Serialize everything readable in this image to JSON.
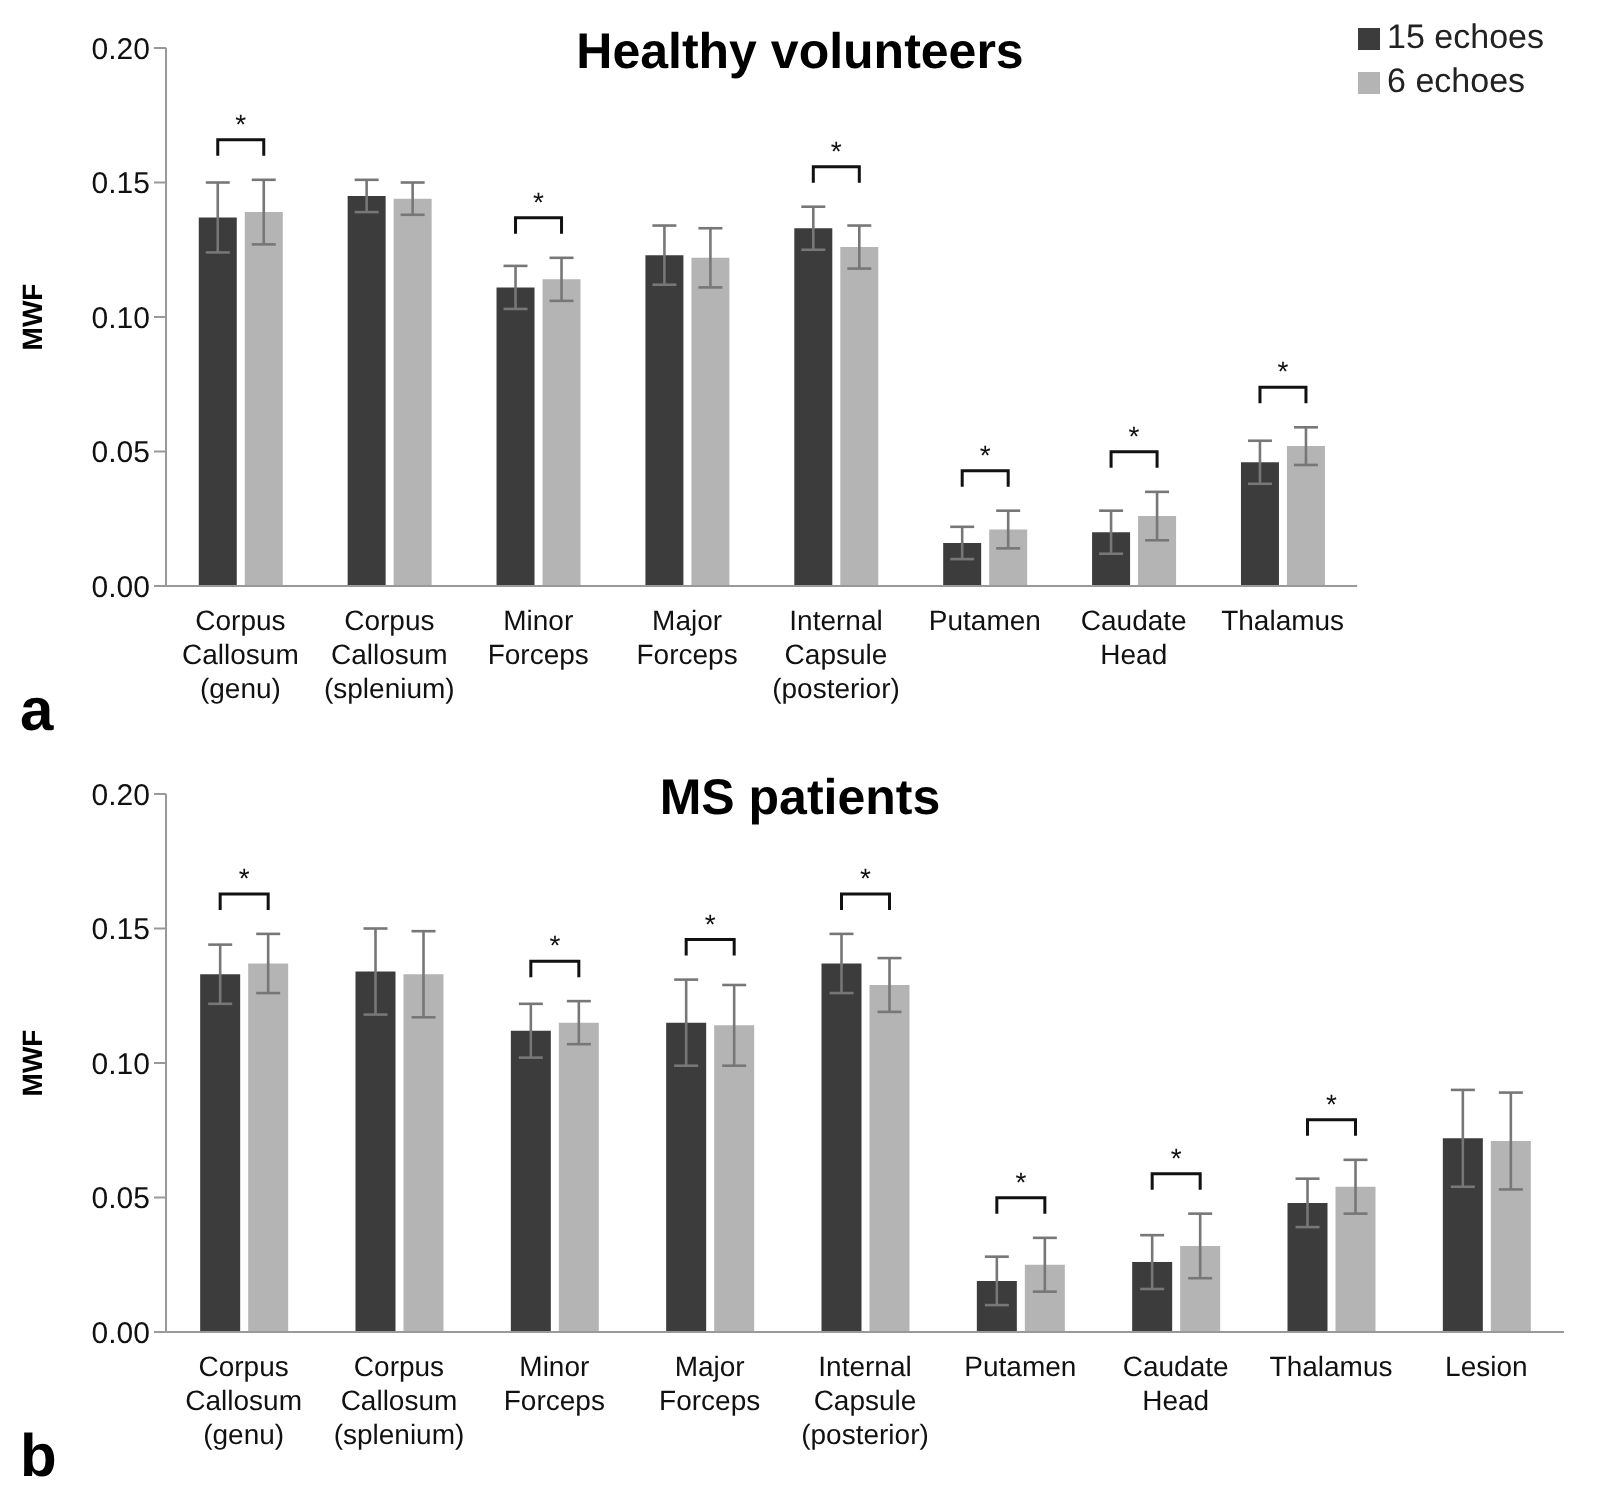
{
  "chart_data": [
    {
      "type": "bar",
      "title": "Healthy volunteers",
      "ylabel": "MWF",
      "categories": [
        "Corpus\nCallosum\n(genu)",
        "Corpus\nCallosum\n(splenium)",
        "Minor\nForceps",
        "Major\nForceps",
        "Internal\nCapsule\n(posterior)",
        "Putamen",
        "Caudate\nHead",
        "Thalamus"
      ],
      "series": [
        {
          "name": "15 echoes",
          "color": "#3c3c3c",
          "values": [
            0.137,
            0.145,
            0.111,
            0.123,
            0.133,
            0.016,
            0.02,
            0.046
          ],
          "errors": [
            0.013,
            0.006,
            0.008,
            0.011,
            0.008,
            0.006,
            0.008,
            0.008
          ]
        },
        {
          "name": "6 echoes",
          "color": "#b4b4b4",
          "values": [
            0.139,
            0.144,
            0.114,
            0.122,
            0.126,
            0.021,
            0.026,
            0.052
          ],
          "errors": [
            0.012,
            0.006,
            0.008,
            0.011,
            0.008,
            0.007,
            0.009,
            0.007
          ]
        }
      ],
      "ylim": [
        0,
        0.2
      ],
      "yticks": [
        {
          "value": 0,
          "label": "0.00"
        },
        {
          "value": 0.05,
          "label": "0.05"
        },
        {
          "value": 0.1,
          "label": "0.10"
        },
        {
          "value": 0.15,
          "label": "0.15"
        },
        {
          "value": 0.2,
          "label": "0.20"
        }
      ],
      "legend": "top right",
      "annotations": [
        "*",
        "*",
        "*",
        "*",
        "*",
        "*",
        "a"
      ]
    },
    {
      "type": "bar",
      "title": "MS patients",
      "ylabel": "MWF",
      "categories": [
        "Corpus\nCallosum\n(genu)",
        "Corpus\nCallosum\n(splenium)",
        "Minor\nForceps",
        "Major\nForceps",
        "Internal\nCapsule\n(posterior)",
        "Putamen",
        "Caudate\nHead",
        "Thalamus",
        "Lesion"
      ],
      "series": [
        {
          "color": "#3c3c3c",
          "values": [
            0.133,
            0.134,
            0.112,
            0.115,
            0.137,
            0.019,
            0.026,
            0.048,
            0.072
          ],
          "errors": [
            0.011,
            0.016,
            0.01,
            0.016,
            0.011,
            0.009,
            0.01,
            0.009,
            0.018
          ]
        },
        {
          "color": "#b4b4b4",
          "values": [
            0.137,
            0.133,
            0.115,
            0.114,
            0.129,
            0.025,
            0.032,
            0.054,
            0.071
          ],
          "errors": [
            0.011,
            0.016,
            0.008,
            0.015,
            0.01,
            0.01,
            0.012,
            0.01,
            0.018
          ]
        }
      ],
      "ylim": [
        0,
        0.2
      ],
      "yticks": [
        {
          "value": 0,
          "label": "0.00"
        },
        {
          "value": 0.05,
          "label": "0.05"
        },
        {
          "value": 0.1,
          "label": "0.10"
        },
        {
          "value": 0.15,
          "label": "0.15"
        },
        {
          "value": 0.2,
          "label": "0.20"
        }
      ],
      "annotations": [
        "*",
        "*",
        "*",
        "*",
        "*",
        "*",
        "*",
        "b"
      ]
    }
  ]
}
